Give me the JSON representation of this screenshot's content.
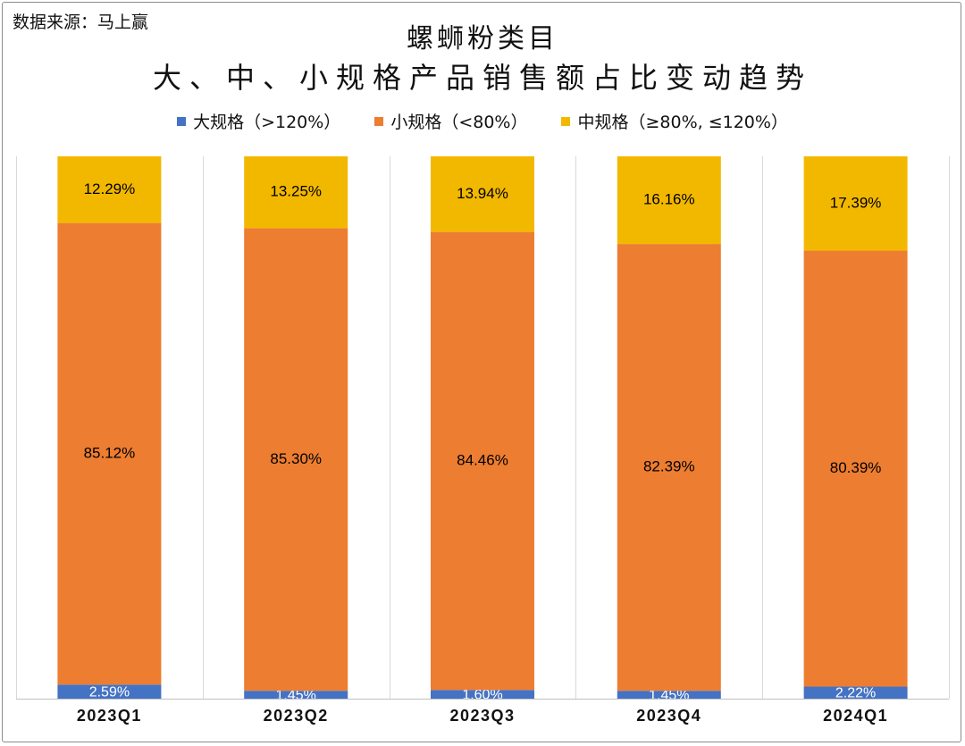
{
  "source_note": "数据来源：马上赢",
  "chart_data": {
    "type": "bar",
    "stacked": true,
    "title_line1": "螺蛳粉类目",
    "title_line2": "大、中、小规格产品销售额占比变动趋势",
    "categories": [
      "2023Q1",
      "2023Q2",
      "2023Q3",
      "2023Q4",
      "2024Q1"
    ],
    "ylim": [
      0,
      100
    ],
    "legend_position": "top-center",
    "series": [
      {
        "name": "大规格（>120%）",
        "color": "#4472c4",
        "values": [
          2.59,
          1.45,
          1.6,
          1.45,
          2.22
        ],
        "labels": [
          "2.59%",
          "1.45%",
          "1.60%",
          "1.45%",
          "2.22%"
        ]
      },
      {
        "name": "小规格（<80%）",
        "color": "#ed7d31",
        "values": [
          85.12,
          85.3,
          84.46,
          82.39,
          80.39
        ],
        "labels": [
          "85.12%",
          "85.30%",
          "84.46%",
          "82.39%",
          "80.39%"
        ]
      },
      {
        "name": "中规格（≥80%, ≤120%）",
        "color": "#f2b800",
        "values": [
          12.29,
          13.25,
          13.94,
          16.16,
          17.39
        ],
        "labels": [
          "12.29%",
          "13.25%",
          "13.94%",
          "16.16%",
          "17.39%"
        ]
      }
    ]
  }
}
